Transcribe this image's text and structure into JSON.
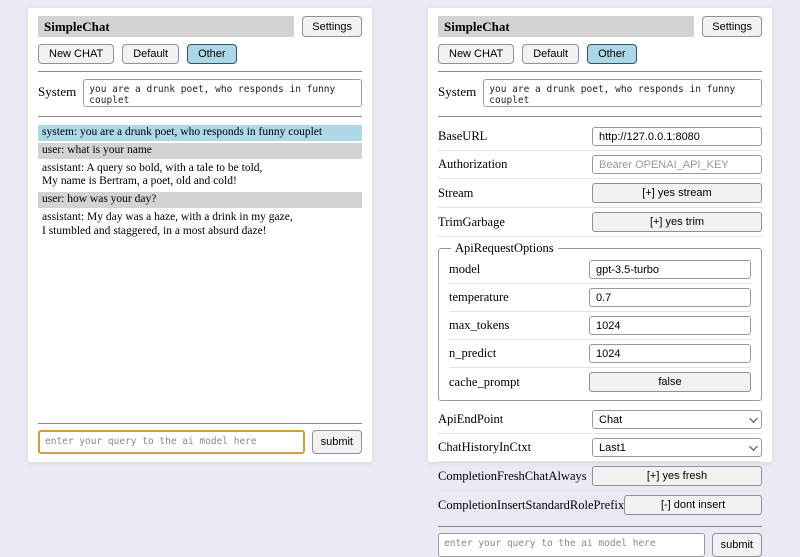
{
  "header": {
    "title": "SimpleChat",
    "settings_button": "Settings",
    "sessions": [
      {
        "label": "New CHAT",
        "active": false
      },
      {
        "label": "Default",
        "active": false
      },
      {
        "label": "Other",
        "active": true
      }
    ]
  },
  "system_prompt": {
    "label": "System",
    "value": "you are a drunk poet, who responds in funny couplet"
  },
  "chat": {
    "messages": [
      {
        "role": "system",
        "text": "system: you are a drunk poet, who responds in funny couplet"
      },
      {
        "role": "user",
        "text": "user: what is your name"
      },
      {
        "role": "assistant",
        "text": "assistant: A query so bold, with a tale to be told,\nMy name is Bertram, a poet, old and cold!"
      },
      {
        "role": "user",
        "text": "user: how was your day?"
      },
      {
        "role": "assistant",
        "text": "assistant: My day was a haze, with a drink in my gaze,\nI stumbled and staggered, in a most absurd daze!"
      }
    ]
  },
  "query": {
    "placeholder": "enter your query to the ai model here",
    "submit_label": "submit"
  },
  "settings": {
    "base_url": {
      "label": "BaseURL",
      "value": "http://127.0.0.1:8080"
    },
    "authorization": {
      "label": "Authorization",
      "placeholder": "Bearer OPENAI_API_KEY"
    },
    "stream": {
      "label": "Stream",
      "value": "[+] yes stream"
    },
    "trim_garbage": {
      "label": "TrimGarbage",
      "value": "[+] yes trim"
    },
    "api_request_options": {
      "legend": "ApiRequestOptions",
      "model": {
        "label": "model",
        "value": "gpt-3.5-turbo"
      },
      "temperature": {
        "label": "temperature",
        "value": "0.7"
      },
      "max_tokens": {
        "label": "max_tokens",
        "value": "1024"
      },
      "n_predict": {
        "label": "n_predict",
        "value": "1024"
      },
      "cache_prompt": {
        "label": "cache_prompt",
        "value": "false"
      }
    },
    "api_endpoint": {
      "label": "ApiEndPoint",
      "value": "Chat"
    },
    "chat_history_in_ctxt": {
      "label": "ChatHistoryInCtxt",
      "value": "Last1"
    },
    "completion_fresh_chat_always": {
      "label": "CompletionFreshChatAlways",
      "value": "[+] yes fresh"
    },
    "completion_insert_standard_role_prefix": {
      "label": "CompletionInsertStandardRolePrefix",
      "value": "[-] dont insert"
    }
  },
  "colors": {
    "page_bg": "#e8ebf3",
    "titlebar_bg": "#d3d3d3",
    "active_session_bg": "#add8e6",
    "system_message_bg": "#add8e6",
    "user_message_bg": "#d3d3d3",
    "focused_input_border": "#d79b3f"
  }
}
